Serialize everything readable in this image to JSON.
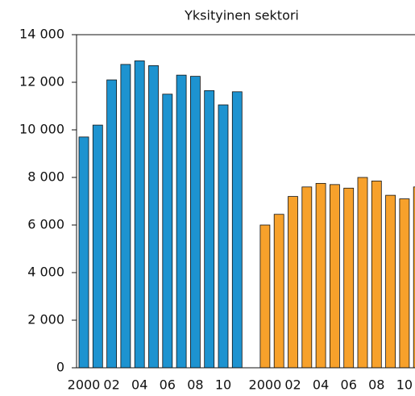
{
  "chart_data": {
    "type": "bar",
    "title": "Yksityinen sektori",
    "categories": [
      "2000",
      null,
      "02",
      null,
      "04",
      null,
      "06",
      null,
      "08",
      null,
      "10",
      null,
      null,
      "2000",
      null,
      "02",
      null,
      "04",
      null,
      "06",
      null,
      "08",
      null,
      "10",
      null
    ],
    "series": [
      {
        "color": "#1d93d0",
        "values": [
          9700,
          10200,
          12100,
          12750,
          12900,
          12700,
          11500,
          12300,
          12250,
          11650,
          11050,
          11600,
          null,
          null,
          null,
          null,
          null,
          null,
          null,
          null,
          null,
          null,
          null,
          null,
          null
        ]
      },
      {
        "color": "#f7a12b",
        "values": [
          null,
          null,
          null,
          null,
          null,
          null,
          null,
          null,
          null,
          null,
          null,
          null,
          null,
          6000,
          6450,
          7200,
          7600,
          7750,
          7700,
          7550,
          8000,
          7850,
          7250,
          7100,
          7600
        ]
      }
    ],
    "ylim": [
      0,
      14000
    ],
    "yticks": [
      0,
      {
        "value": 2000,
        "label": "2 000"
      },
      {
        "value": 4000,
        "label": "4 000"
      },
      {
        "value": 6000,
        "label": "6 000"
      },
      {
        "value": 8000,
        "label": "8 000"
      },
      {
        "value": 10000,
        "label": "10 000"
      },
      {
        "value": 12000,
        "label": "12 000"
      },
      {
        "value": 14000,
        "label": "14 000"
      }
    ]
  }
}
